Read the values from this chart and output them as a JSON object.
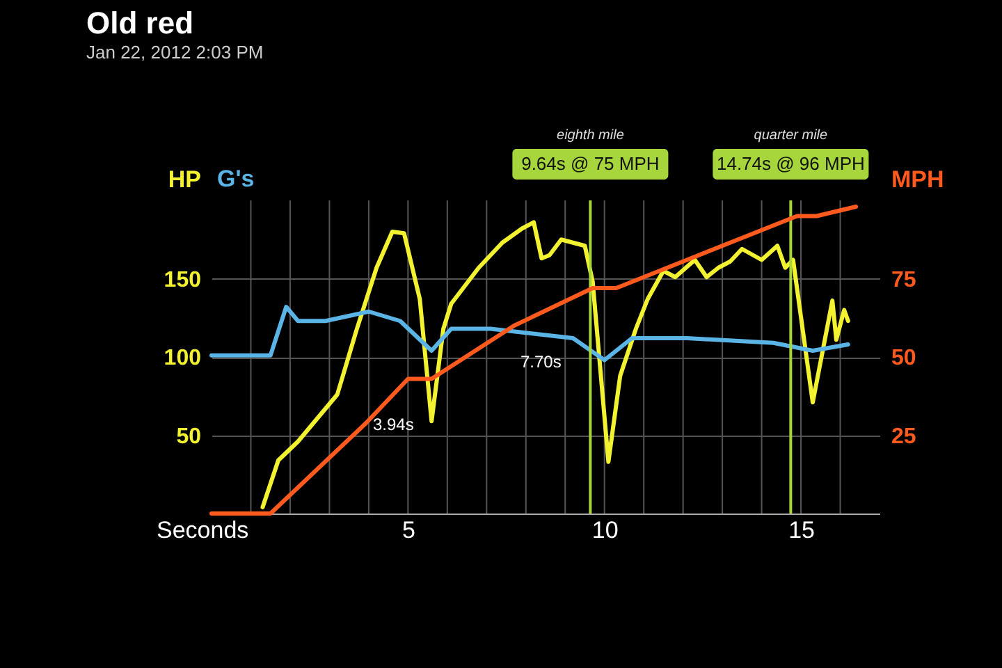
{
  "chart_data": {
    "type": "line",
    "title": "Old red",
    "subtitle": "Jan 22, 2012 2:03 PM",
    "xlabel": "Seconds",
    "xlim": [
      0,
      17
    ],
    "xticks": [
      {
        "value": 1,
        "label": null
      },
      {
        "value": 2,
        "label": null
      },
      {
        "value": 3,
        "label": null
      },
      {
        "value": 4,
        "label": null
      },
      5,
      {
        "value": 6,
        "label": null
      },
      {
        "value": 7,
        "label": null
      },
      {
        "value": 8,
        "label": null
      },
      {
        "value": 9,
        "label": null
      },
      10,
      {
        "value": 11,
        "label": null
      },
      {
        "value": 12,
        "label": null
      },
      {
        "value": 13,
        "label": null
      },
      {
        "value": 14,
        "label": null
      },
      15,
      {
        "value": 16,
        "label": null
      }
    ],
    "ylim": [
      0,
      200
    ],
    "yticks": [
      50,
      100,
      150
    ],
    "y2lim": [
      0,
      100
    ],
    "y2ticks": [
      25,
      50,
      75
    ],
    "grid": true,
    "series": [
      {
        "name": "HP",
        "color": "#f2f230",
        "x": [
          1.3,
          1.7,
          2.2,
          3.2,
          3.7,
          4.2,
          4.6,
          4.9,
          5.3,
          5.6,
          5.9,
          6.1,
          6.8,
          7.4,
          7.9,
          8.2,
          8.4,
          8.6,
          8.9,
          9.5,
          9.7,
          10.1,
          10.4,
          10.8,
          11.1,
          11.5,
          11.8,
          12.3,
          12.6,
          12.9,
          13.2,
          13.5,
          14,
          14.4,
          14.6,
          14.8,
          15.3,
          15.8,
          15.9,
          16.1,
          16.2
        ],
        "values": [
          4,
          34,
          46,
          76,
          118,
          157,
          180,
          179,
          137,
          59,
          118,
          134,
          157,
          173,
          182,
          186,
          163,
          165,
          175,
          171,
          148,
          33,
          88,
          118,
          137,
          155,
          151,
          162,
          151,
          157,
          161,
          169,
          162,
          171,
          157,
          162,
          71,
          136,
          111,
          130,
          123
        ]
      },
      {
        "name": "G's",
        "color": "#5ab4e6",
        "x": [
          0,
          1.5,
          1.9,
          2.2,
          2.9,
          4,
          4.8,
          5.6,
          6.1,
          7.1,
          9.2,
          10,
          10.7,
          12.1,
          14.3,
          15.3,
          16.2
        ],
        "values": [
          101,
          101,
          132,
          123,
          123,
          129,
          123,
          104,
          118,
          118,
          112,
          98,
          112,
          112,
          109,
          104,
          108
        ]
      },
      {
        "name": "MPH",
        "color": "#ff5a1e",
        "axis": "y2",
        "x": [
          0,
          1.5,
          3.94,
          5,
          5.6,
          7.7,
          9.7,
          10.3,
          14.9,
          15.4,
          16.4
        ],
        "values": [
          0,
          0,
          29,
          43,
          43,
          60,
          72,
          72,
          95,
          95,
          98
        ]
      }
    ],
    "ref_lines": [
      {
        "axis": "x",
        "value": 9.64,
        "label": "9.64s @ 75 MPH",
        "color": "#a6d63c"
      },
      {
        "axis": "x",
        "value": 14.74,
        "label": "14.74s @ 96 MPH",
        "color": "#a6d63c"
      }
    ],
    "annotations": [
      "eighth mile",
      "quarter mile",
      "3.94s",
      "7.70s"
    ]
  }
}
